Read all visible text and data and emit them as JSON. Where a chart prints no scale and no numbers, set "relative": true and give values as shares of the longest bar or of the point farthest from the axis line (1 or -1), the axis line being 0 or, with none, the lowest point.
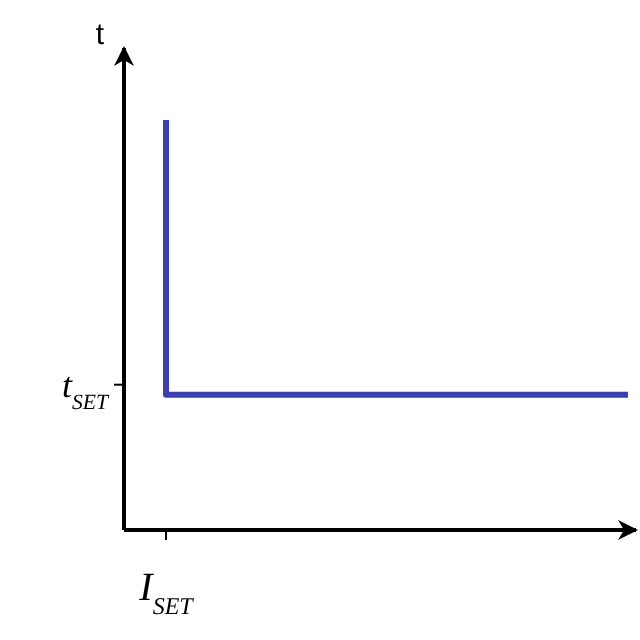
{
  "chart_data": {
    "type": "step",
    "relative": true,
    "ylabel": "t",
    "categories": [
      null,
      null
    ],
    "series": [
      {
        "color": "#3b3fb0",
        "values": [
          1,
          0.33
        ]
      }
    ],
    "annotations": [
      "t$_{SET}$",
      "I$_{SET}$"
    ],
    "grid": false,
    "marker": "none",
    "line_style": "solid"
  }
}
